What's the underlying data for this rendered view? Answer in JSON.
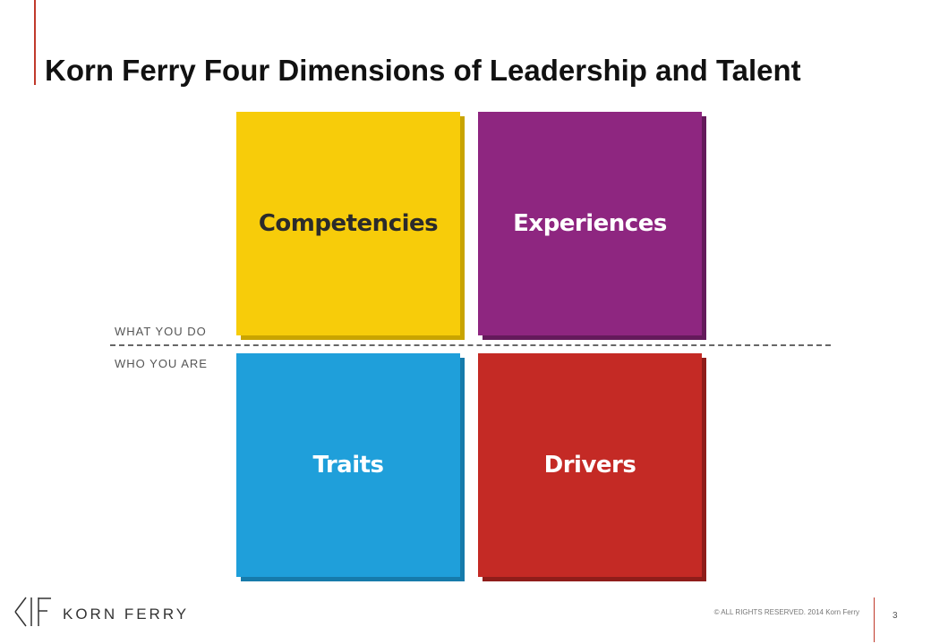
{
  "title": "Korn Ferry Four Dimensions of Leadership and Talent",
  "quadrants": {
    "competencies": "Competencies",
    "experiences": "Experiences",
    "traits": "Traits",
    "drivers": "Drivers"
  },
  "axis": {
    "top_label": "WHAT YOU DO",
    "bottom_label": "WHO YOU ARE"
  },
  "footer": {
    "logo_text": "KORN FERRY",
    "copyright": "© ALL RIGHTS RESERVED. 2014 Korn Ferry",
    "page_number": "3"
  },
  "colors": {
    "competencies": "#f7cc0a",
    "experiences": "#8e2680",
    "traits": "#1f9fda",
    "drivers": "#c42a25",
    "accent": "#c0392b"
  }
}
